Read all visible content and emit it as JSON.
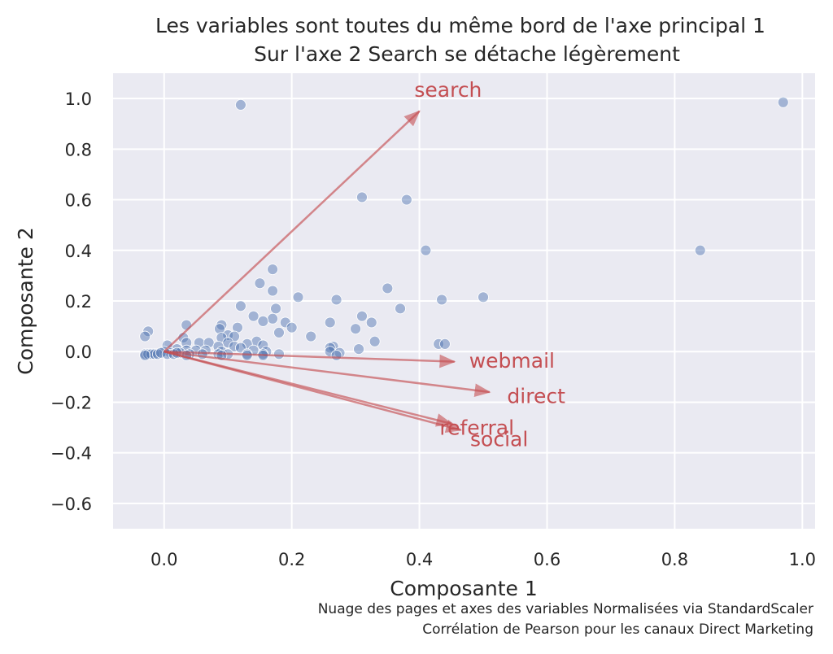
{
  "chart_data": {
    "type": "scatter",
    "title": [
      "Les variables sont toutes du même bord de l'axe principal 1",
      "Sur l'axe 2 Search se détache légèrement"
    ],
    "xlabel": "Composante 1",
    "ylabel": "Composante 2",
    "xlim": [
      -0.08,
      1.02
    ],
    "ylim": [
      -0.7,
      1.1
    ],
    "x_ticks": [
      "0.0",
      "0.2",
      "0.4",
      "0.6",
      "0.8",
      "1.0"
    ],
    "x_tick_values": [
      0.0,
      0.2,
      0.4,
      0.6,
      0.8,
      1.0
    ],
    "y_ticks": [
      "1.0",
      "0.8",
      "0.6",
      "0.4",
      "0.2",
      "0.0",
      "−0.2",
      "−0.4",
      "−0.6"
    ],
    "y_tick_values": [
      1.0,
      0.8,
      0.6,
      0.4,
      0.2,
      0.0,
      -0.2,
      -0.4,
      -0.6
    ],
    "grid": true,
    "point_color": "#4c72b0",
    "vector_color": "#c44e52",
    "background_color": "#eaeaf2",
    "points": [
      [
        0.12,
        0.975
      ],
      [
        0.97,
        0.985
      ],
      [
        0.31,
        0.61
      ],
      [
        0.38,
        0.6
      ],
      [
        0.41,
        0.4
      ],
      [
        0.84,
        0.4
      ],
      [
        0.17,
        0.325
      ],
      [
        0.15,
        0.27
      ],
      [
        0.35,
        0.25
      ],
      [
        0.17,
        0.24
      ],
      [
        0.21,
        0.215
      ],
      [
        0.5,
        0.215
      ],
      [
        0.27,
        0.205
      ],
      [
        0.435,
        0.205
      ],
      [
        0.12,
        0.18
      ],
      [
        0.37,
        0.17
      ],
      [
        0.175,
        0.17
      ],
      [
        0.14,
        0.14
      ],
      [
        0.31,
        0.14
      ],
      [
        0.17,
        0.13
      ],
      [
        0.155,
        0.12
      ],
      [
        0.19,
        0.115
      ],
      [
        0.26,
        0.115
      ],
      [
        0.325,
        0.115
      ],
      [
        0.035,
        0.105
      ],
      [
        0.09,
        0.105
      ],
      [
        0.2,
        0.095
      ],
      [
        0.115,
        0.095
      ],
      [
        0.087,
        0.09
      ],
      [
        0.3,
        0.09
      ],
      [
        -0.025,
        0.08
      ],
      [
        0.18,
        0.075
      ],
      [
        0.1,
        0.065
      ],
      [
        0.23,
        0.06
      ],
      [
        -0.03,
        0.06
      ],
      [
        0.11,
        0.06
      ],
      [
        0.03,
        0.055
      ],
      [
        0.09,
        0.055
      ],
      [
        0.145,
        0.04
      ],
      [
        0.055,
        0.035
      ],
      [
        0.035,
        0.035
      ],
      [
        0.07,
        0.035
      ],
      [
        0.1,
        0.035
      ],
      [
        0.13,
        0.03
      ],
      [
        0.33,
        0.04
      ],
      [
        0.43,
        0.03
      ],
      [
        0.44,
        0.03
      ],
      [
        0.155,
        0.025
      ],
      [
        0.265,
        0.02
      ],
      [
        0.26,
        0.015
      ],
      [
        0.005,
        0.025
      ],
      [
        0.085,
        0.02
      ],
      [
        0.11,
        0.02
      ],
      [
        0.12,
        0.015
      ],
      [
        0.305,
        0.01
      ],
      [
        0.02,
        0.01
      ],
      [
        0.035,
        0.005
      ],
      [
        0.05,
        0.005
      ],
      [
        0.065,
        0.005
      ],
      [
        0.09,
        0.0
      ],
      [
        0.14,
        0.005
      ],
      [
        0.16,
        0.0
      ],
      [
        0.26,
        0.0
      ],
      [
        0.275,
        -0.005
      ],
      [
        0.0,
        0.0
      ],
      [
        0.01,
        -0.005
      ],
      [
        0.025,
        -0.005
      ],
      [
        0.04,
        -0.01
      ],
      [
        0.06,
        -0.01
      ],
      [
        0.085,
        -0.01
      ],
      [
        0.1,
        -0.01
      ],
      [
        0.13,
        -0.01
      ],
      [
        0.155,
        -0.01
      ],
      [
        0.18,
        -0.01
      ],
      [
        0.27,
        -0.015
      ],
      [
        -0.03,
        -0.01
      ],
      [
        -0.025,
        -0.01
      ],
      [
        -0.02,
        -0.01
      ],
      [
        -0.015,
        -0.01
      ],
      [
        -0.01,
        -0.01
      ],
      [
        -0.005,
        -0.005
      ],
      [
        0.005,
        -0.01
      ],
      [
        0.015,
        -0.01
      ],
      [
        0.02,
        -0.005
      ],
      [
        0.035,
        -0.015
      ],
      [
        0.09,
        -0.015
      ],
      [
        0.13,
        -0.015
      ],
      [
        0.155,
        -0.015
      ],
      [
        -0.03,
        -0.015
      ]
    ],
    "vectors": [
      {
        "name": "search",
        "x": 0.4,
        "y": 0.95,
        "label_x": 0.445,
        "label_y": 1.035
      },
      {
        "name": "webmail",
        "x": 0.455,
        "y": -0.04,
        "label_x": 0.545,
        "label_y": -0.035
      },
      {
        "name": "direct",
        "x": 0.51,
        "y": -0.16,
        "label_x": 0.583,
        "label_y": -0.175
      },
      {
        "name": "referral",
        "x": 0.45,
        "y": -0.285,
        "label_x": 0.49,
        "label_y": -0.3
      },
      {
        "name": "social",
        "x": 0.465,
        "y": -0.31,
        "label_x": 0.525,
        "label_y": -0.345
      }
    ],
    "caption": [
      "Nuage des pages et axes des variables Normalisées via StandardScaler ",
      "Corrélation de Pearson pour les canaux Direct Marketing"
    ]
  }
}
